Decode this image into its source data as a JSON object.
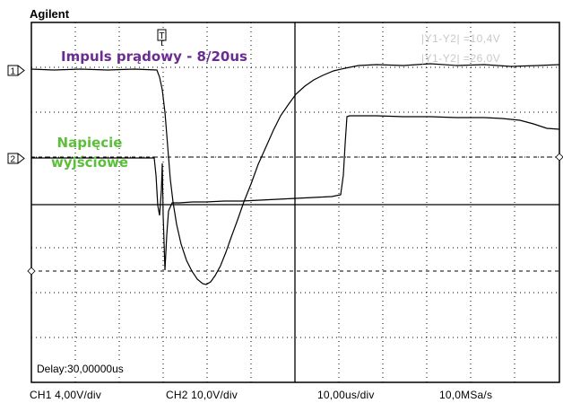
{
  "brand": "Agilent",
  "overlay": {
    "current_label": "Impuls prądowy - 8/20us",
    "voltage_label_line1": "Napięcie",
    "voltage_label_line2": "wyjściowe",
    "current_color": "#6a2c91",
    "voltage_color": "#5bbf3a"
  },
  "channels": {
    "ch1_marker": "1",
    "ch2_marker": "2"
  },
  "trigger_marker": "T",
  "measurements": {
    "m1": "|Y1-Y2|  =10,4V",
    "m2": "|Y1-Y2|  =26,0V"
  },
  "delay": "Delay:30,00000us",
  "footer": {
    "ch1_scale": "CH1 4,00V/div",
    "ch2_scale": "CH2 10,0V/div",
    "timebase": "10,00us/div",
    "sample_rate": "10,0MSa/s"
  }
}
